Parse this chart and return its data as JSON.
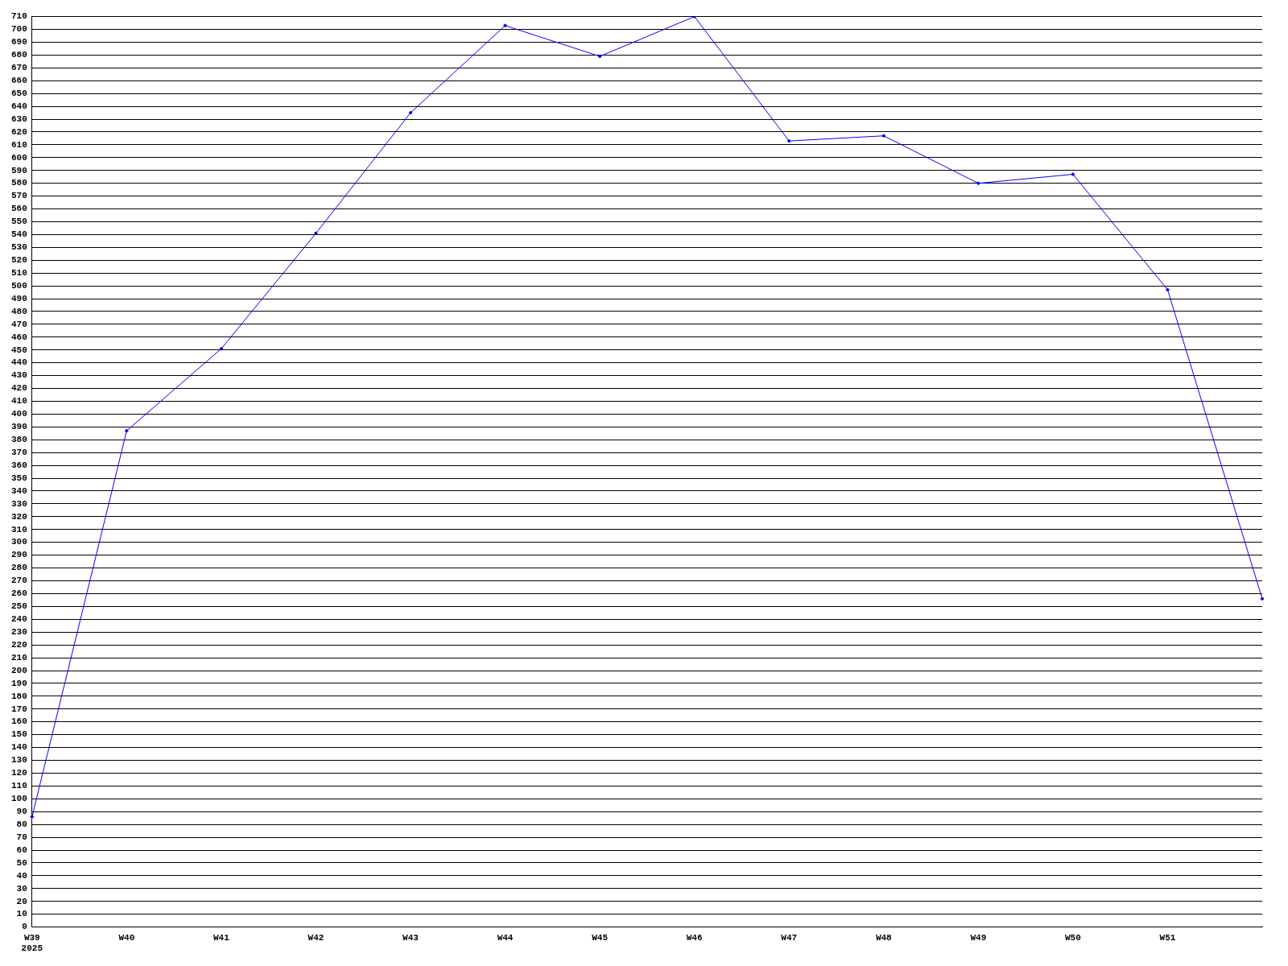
{
  "chart_data": {
    "type": "line",
    "categories": [
      "W39\n2025",
      "W40",
      "W41",
      "W42",
      "W43",
      "W44",
      "W45",
      "W46",
      "W47",
      "W48",
      "W49",
      "W50",
      "W51",
      null
    ],
    "series": [
      {
        "color": "#0000ff",
        "values": [
          86,
          387,
          451,
          541,
          635,
          703,
          679,
          710,
          613,
          617,
          580,
          587,
          497,
          256
        ]
      }
    ],
    "ylim": [
      0,
      710
    ],
    "yticks": [
      0,
      10,
      20,
      30,
      40,
      50,
      60,
      70,
      80,
      90,
      100,
      110,
      120,
      130,
      140,
      150,
      160,
      170,
      180,
      190,
      200,
      210,
      220,
      230,
      240,
      250,
      260,
      270,
      280,
      290,
      300,
      310,
      320,
      330,
      340,
      350,
      360,
      370,
      380,
      390,
      400,
      410,
      420,
      430,
      440,
      450,
      460,
      470,
      480,
      490,
      500,
      510,
      520,
      530,
      540,
      550,
      560,
      570,
      580,
      590,
      600,
      610,
      620,
      630,
      640,
      650,
      660,
      670,
      680,
      690,
      700,
      710
    ],
    "grid": "y",
    "legend": false,
    "marker": "diamond",
    "line_style": "solid"
  }
}
